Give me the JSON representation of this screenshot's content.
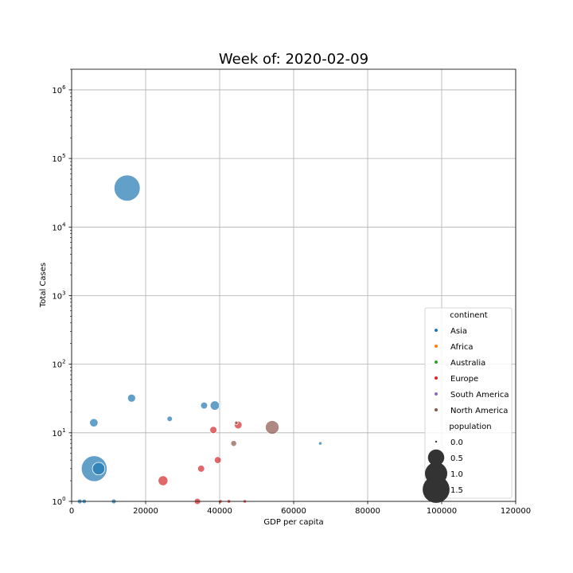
{
  "chart_data": {
    "type": "scatter",
    "title": "Week of: 2020-02-09",
    "xlabel": "GDP per capita",
    "ylabel": "Total Cases",
    "xlim": [
      0,
      120000
    ],
    "ylim": [
      1,
      2000000
    ],
    "yscale": "log",
    "grid": true,
    "x_ticks": [
      "0",
      "20000",
      "40000",
      "60000",
      "80000",
      "100000",
      "120000"
    ],
    "y_ticks": [
      {
        "base": "10",
        "exp": "0"
      },
      {
        "base": "10",
        "exp": "1"
      },
      {
        "base": "10",
        "exp": "2"
      },
      {
        "base": "10",
        "exp": "3"
      },
      {
        "base": "10",
        "exp": "4"
      },
      {
        "base": "10",
        "exp": "5"
      },
      {
        "base": "10",
        "exp": "6"
      }
    ],
    "legend": {
      "placement": "lower-right",
      "continent_title": "continent",
      "continents": [
        {
          "name": "Asia",
          "color": "#1f77b4"
        },
        {
          "name": "Africa",
          "color": "#ff7f0e"
        },
        {
          "name": "Australia",
          "color": "#2ca02c"
        },
        {
          "name": "Europe",
          "color": "#d62728"
        },
        {
          "name": "South America",
          "color": "#9467bd"
        },
        {
          "name": "North America",
          "color": "#8c564b"
        }
      ],
      "population_title": "population",
      "population_sizes": [
        {
          "label": "0.0",
          "value": 0.0
        },
        {
          "label": "0.5",
          "value": 0.5
        },
        {
          "label": "1.0",
          "value": 1.0
        },
        {
          "label": "1.5",
          "value": 1.5
        }
      ]
    },
    "points": [
      {
        "continent": "Asia",
        "gdp": 15000,
        "cases": 37000,
        "population": 1.4
      },
      {
        "continent": "Asia",
        "gdp": 6100,
        "cases": 3,
        "population": 1.36
      },
      {
        "continent": "Asia",
        "gdp": 7300,
        "cases": 3,
        "population": 0.27
      },
      {
        "continent": "Asia",
        "gdp": 16200,
        "cases": 32,
        "population": 0.09
      },
      {
        "continent": "Asia",
        "gdp": 6000,
        "cases": 14,
        "population": 0.1
      },
      {
        "continent": "Asia",
        "gdp": 35800,
        "cases": 25,
        "population": 0.06
      },
      {
        "continent": "Asia",
        "gdp": 38700,
        "cases": 25,
        "population": 0.13
      },
      {
        "continent": "Asia",
        "gdp": 26500,
        "cases": 16,
        "population": 0.03
      },
      {
        "continent": "Asia",
        "gdp": 67200,
        "cases": 7,
        "population": 0.006
      },
      {
        "continent": "Asia",
        "gdp": 2200,
        "cases": 1,
        "population": 0.02
      },
      {
        "continent": "Asia",
        "gdp": 3400,
        "cases": 1,
        "population": 0.016
      },
      {
        "continent": "Asia",
        "gdp": 11400,
        "cases": 1,
        "population": 0.02
      },
      {
        "continent": "Europe",
        "gdp": 24700,
        "cases": 2,
        "population": 0.15
      },
      {
        "continent": "Europe",
        "gdp": 35000,
        "cases": 3,
        "population": 0.06
      },
      {
        "continent": "Europe",
        "gdp": 39500,
        "cases": 4,
        "population": 0.06
      },
      {
        "continent": "Europe",
        "gdp": 38300,
        "cases": 11,
        "population": 0.065
      },
      {
        "continent": "Europe",
        "gdp": 45000,
        "cases": 13,
        "population": 0.083
      },
      {
        "continent": "Europe",
        "gdp": 34000,
        "cases": 1,
        "population": 0.045
      },
      {
        "continent": "Europe",
        "gdp": 40200,
        "cases": 1,
        "population": 0.007
      },
      {
        "continent": "Europe",
        "gdp": 42500,
        "cases": 1,
        "population": 0.007
      },
      {
        "continent": "Europe",
        "gdp": 46800,
        "cases": 1,
        "population": 0.006
      },
      {
        "continent": "North America",
        "gdp": 54200,
        "cases": 12,
        "population": 0.33
      },
      {
        "continent": "North America",
        "gdp": 43800,
        "cases": 7,
        "population": 0.037
      },
      {
        "continent": "North America",
        "gdp": 44500,
        "cases": 14,
        "population": 0.006
      }
    ]
  }
}
